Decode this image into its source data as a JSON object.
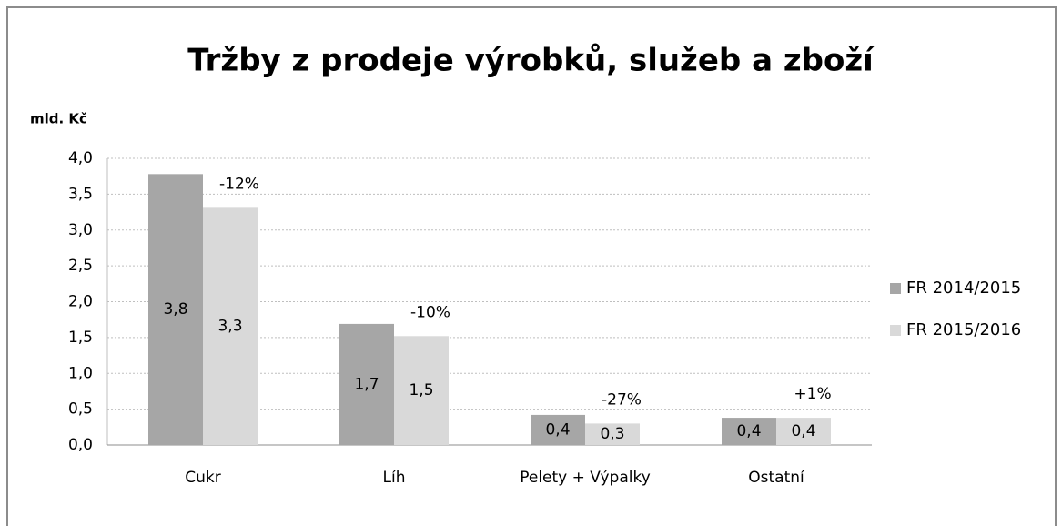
{
  "chart_data": {
    "type": "bar",
    "title": "Tržby z prodeje výrobků, služeb a zboží",
    "y_axis_label": "mld. Kč",
    "categories": [
      "Cukr",
      "Líh",
      "Pelety + Výpalky",
      "Ostatní"
    ],
    "series": [
      {
        "name": "FR 2014/2015",
        "color": "#a6a6a6",
        "values": [
          3.78,
          1.69,
          0.42,
          0.38
        ],
        "value_labels": [
          "3,8",
          "1,7",
          "0,4",
          "0,4"
        ]
      },
      {
        "name": "FR 2015/2016",
        "color": "#d9d9d9",
        "values": [
          3.31,
          1.52,
          0.3,
          0.38
        ],
        "value_labels": [
          "3,3",
          "1,5",
          "0,3",
          "0,4"
        ]
      }
    ],
    "annotations": [
      "-12%",
      "-10%",
      "-27%",
      "+1%"
    ],
    "ylim": [
      0,
      4
    ],
    "yticks": [
      {
        "value": 0,
        "label": "0,0"
      },
      {
        "value": 0.5,
        "label": "0,5"
      },
      {
        "value": 1,
        "label": "1,0"
      },
      {
        "value": 1.5,
        "label": "1,5"
      },
      {
        "value": 2,
        "label": "2,0"
      },
      {
        "value": 2.5,
        "label": "2,5"
      },
      {
        "value": 3,
        "label": "3,0"
      },
      {
        "value": 3.5,
        "label": "3,5"
      },
      {
        "value": 4,
        "label": "4,0"
      }
    ],
    "grid": true,
    "legend": "right"
  }
}
